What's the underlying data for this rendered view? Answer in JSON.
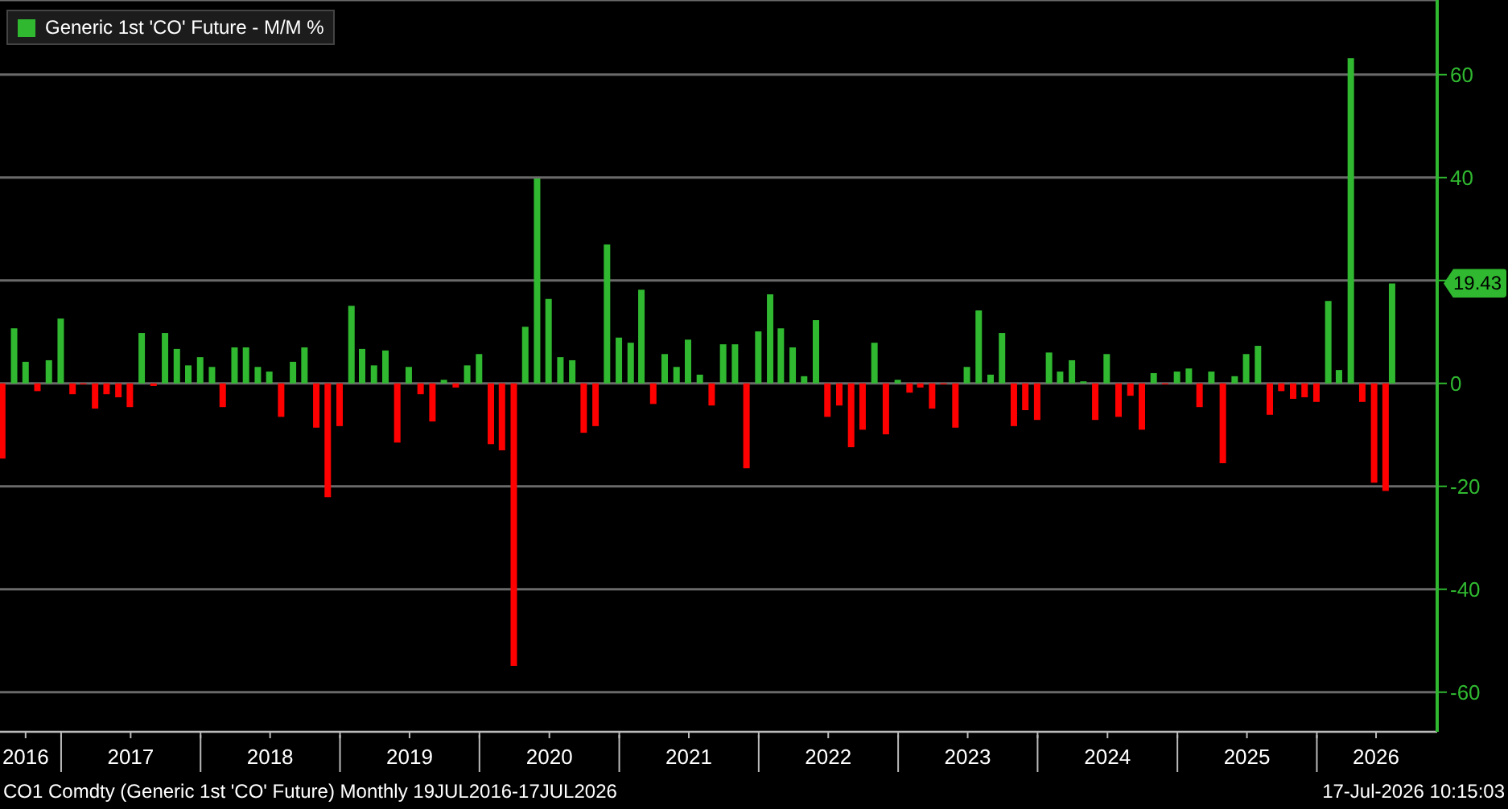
{
  "chart_data": {
    "type": "bar",
    "x": [
      "2016-07-31",
      "2016-08-31",
      "2016-09-30",
      "2016-10-31",
      "2016-11-30",
      "2016-12-31",
      "2017-01-31",
      "2017-02-28",
      "2017-03-31",
      "2017-04-30",
      "2017-05-31",
      "2017-06-30",
      "2017-07-31",
      "2017-08-31",
      "2017-09-30",
      "2017-10-31",
      "2017-11-30",
      "2017-12-31",
      "2018-01-31",
      "2018-02-28",
      "2018-03-31",
      "2018-04-30",
      "2018-05-31",
      "2018-06-30",
      "2018-07-31",
      "2018-08-31",
      "2018-09-30",
      "2018-10-31",
      "2018-11-30",
      "2018-12-31",
      "2019-01-31",
      "2019-02-28",
      "2019-03-31",
      "2019-04-30",
      "2019-05-31",
      "2019-06-30",
      "2019-07-31",
      "2019-08-31",
      "2019-09-30",
      "2019-10-31",
      "2019-11-30",
      "2019-12-31",
      "2020-01-31",
      "2020-02-29",
      "2020-03-31",
      "2020-04-30",
      "2020-05-31",
      "2020-06-30",
      "2020-07-31",
      "2020-08-31",
      "2020-09-30",
      "2020-10-31",
      "2020-11-30",
      "2020-12-31",
      "2021-01-31",
      "2021-02-28",
      "2021-03-31",
      "2021-04-30",
      "2021-05-31",
      "2021-06-30",
      "2021-07-31",
      "2021-08-31",
      "2021-09-30",
      "2021-10-31",
      "2021-11-30",
      "2021-12-31",
      "2022-01-31",
      "2022-02-28",
      "2022-03-31",
      "2022-04-30",
      "2022-05-31",
      "2022-06-30",
      "2022-07-31",
      "2022-08-31",
      "2022-09-30",
      "2022-10-31",
      "2022-11-30",
      "2022-12-31",
      "2023-01-31",
      "2023-02-28",
      "2023-03-31",
      "2023-04-30",
      "2023-05-31",
      "2023-06-30",
      "2023-07-31",
      "2023-08-31",
      "2023-09-30",
      "2023-10-31",
      "2023-11-30",
      "2023-12-31",
      "2024-01-31",
      "2024-02-29",
      "2024-03-31",
      "2024-04-30",
      "2024-05-31",
      "2024-06-30",
      "2024-07-31",
      "2024-08-31",
      "2024-09-30",
      "2024-10-31",
      "2024-11-30",
      "2024-12-31",
      "2025-01-31",
      "2025-02-28",
      "2025-03-31",
      "2025-04-30",
      "2025-05-31",
      "2025-06-30",
      "2025-07-31",
      "2025-08-31",
      "2025-09-30",
      "2025-10-31",
      "2025-11-30",
      "2025-12-31",
      "2026-01-31",
      "2026-02-28",
      "2026-03-31",
      "2026-04-30",
      "2026-05-31",
      "2026-06-30",
      "2026-07-17"
    ],
    "series": [
      {
        "name": "Generic 1st 'CO' Future - M/M %",
        "color": "#30b830",
        "values": [
          -14.6,
          10.7,
          4.2,
          -1.5,
          4.5,
          12.6,
          -2.1,
          -0.2,
          -4.9,
          -2.1,
          -2.7,
          -4.6,
          9.8,
          -0.5,
          9.8,
          6.7,
          3.5,
          5.1,
          3.2,
          -4.6,
          7.0,
          7.0,
          3.2,
          2.3,
          -6.5,
          4.2,
          7.0,
          -8.6,
          -22.1,
          -8.3,
          15.1,
          6.7,
          3.5,
          6.4,
          -11.5,
          3.2,
          -2.1,
          -7.4,
          0.7,
          -0.8,
          3.5,
          5.7,
          -11.8,
          -13.0,
          -54.9,
          11.0,
          39.8,
          16.4,
          5.1,
          4.5,
          -9.6,
          -8.3,
          27.0,
          8.9,
          7.9,
          18.2,
          -4.0,
          5.7,
          3.2,
          8.5,
          1.7,
          -4.3,
          7.6,
          7.6,
          -16.5,
          10.1,
          17.3,
          10.7,
          7.0,
          1.4,
          12.3,
          -6.5,
          -4.3,
          -12.4,
          -9.0,
          7.9,
          -9.9,
          0.7,
          -1.8,
          -0.8,
          -4.9,
          -0.2,
          -8.6,
          3.2,
          14.2,
          1.7,
          9.8,
          -8.3,
          -5.2,
          -7.1,
          6.0,
          2.3,
          4.5,
          0.4,
          -7.1,
          5.7,
          -6.5,
          -2.4,
          -9.0,
          2.0,
          -0.2,
          2.3,
          2.9,
          -4.6,
          2.3,
          -15.5,
          1.4,
          5.7,
          7.3,
          -6.1,
          -1.5,
          -3.0,
          -2.7,
          -3.6,
          16.0,
          2.6,
          63.2,
          -3.6,
          -19.3,
          -20.9,
          19.43
        ],
        "colors": [
          "#ff0000",
          "#30b830",
          "#30b830",
          "#ff0000",
          "#30b830",
          "#30b830",
          "#ff0000",
          "#ff0000",
          "#ff0000",
          "#ff0000",
          "#ff0000",
          "#ff0000",
          "#30b830",
          "#ff0000",
          "#30b830",
          "#30b830",
          "#30b830",
          "#30b830",
          "#30b830",
          "#ff0000",
          "#30b830",
          "#30b830",
          "#30b830",
          "#30b830",
          "#ff0000",
          "#30b830",
          "#30b830",
          "#ff0000",
          "#ff0000",
          "#ff0000",
          "#30b830",
          "#30b830",
          "#30b830",
          "#30b830",
          "#ff0000",
          "#30b830",
          "#ff0000",
          "#ff0000",
          "#30b830",
          "#ff0000",
          "#30b830",
          "#30b830",
          "#ff0000",
          "#ff0000",
          "#ff0000",
          "#30b830",
          "#30b830",
          "#30b830",
          "#30b830",
          "#30b830",
          "#ff0000",
          "#ff0000",
          "#30b830",
          "#30b830",
          "#30b830",
          "#30b830",
          "#ff0000",
          "#30b830",
          "#30b830",
          "#30b830",
          "#30b830",
          "#ff0000",
          "#30b830",
          "#30b830",
          "#ff0000",
          "#30b830",
          "#30b830",
          "#30b830",
          "#30b830",
          "#30b830",
          "#30b830",
          "#ff0000",
          "#ff0000",
          "#ff0000",
          "#ff0000",
          "#30b830",
          "#ff0000",
          "#30b830",
          "#ff0000",
          "#ff0000",
          "#ff0000",
          "#ff0000",
          "#ff0000",
          "#30b830",
          "#30b830",
          "#30b830",
          "#30b830",
          "#ff0000",
          "#ff0000",
          "#ff0000",
          "#30b830",
          "#30b830",
          "#30b830",
          "#30b830",
          "#ff0000",
          "#30b830",
          "#ff0000",
          "#ff0000",
          "#ff0000",
          "#30b830",
          "#ff0000",
          "#30b830",
          "#30b830",
          "#ff0000",
          "#30b830",
          "#ff0000",
          "#30b830",
          "#30b830",
          "#30b830",
          "#ff0000",
          "#ff0000",
          "#ff0000",
          "#ff0000",
          "#ff0000",
          "#30b830",
          "#30b830",
          "#30b830",
          "#ff0000",
          "#ff0000",
          "#ff0000",
          "#30b830"
        ]
      }
    ],
    "xlim": [
      "2016-07-25",
      "2026-11-12"
    ],
    "xticks": [
      {
        "value": "2016-09-30",
        "label": "2016"
      },
      {
        "value": "2017-01-01",
        "label": null
      },
      {
        "value": "2017-07-02",
        "label": "2017"
      },
      {
        "value": "2018-01-01",
        "label": null
      },
      {
        "value": "2018-07-02",
        "label": "2018"
      },
      {
        "value": "2019-01-01",
        "label": null
      },
      {
        "value": "2019-07-02",
        "label": "2019"
      },
      {
        "value": "2020-01-01",
        "label": null
      },
      {
        "value": "2020-07-02",
        "label": "2020"
      },
      {
        "value": "2021-01-01",
        "label": null
      },
      {
        "value": "2021-07-02",
        "label": "2021"
      },
      {
        "value": "2022-01-01",
        "label": null
      },
      {
        "value": "2022-07-02",
        "label": "2022"
      },
      {
        "value": "2023-01-01",
        "label": null
      },
      {
        "value": "2023-07-02",
        "label": "2023"
      },
      {
        "value": "2024-01-01",
        "label": null
      },
      {
        "value": "2024-07-02",
        "label": "2024"
      },
      {
        "value": "2025-01-01",
        "label": null
      },
      {
        "value": "2025-07-02",
        "label": "2025"
      },
      {
        "value": "2026-01-01",
        "label": null
      },
      {
        "value": "2026-06-05",
        "label": "2026"
      }
    ],
    "ylim": [
      -67.7,
      74.5
    ],
    "yticks": [
      -60,
      -40,
      -20,
      0,
      {
        "value": 20,
        "label": null
      },
      40,
      60
    ],
    "grid": "y",
    "legend": "top left",
    "annotations": [
      "19.43",
      "CO1 Comdty (Generic 1st 'CO' Future) Monthly 19JUL2016-17JUL2026",
      "17-Jul-2026 10:15:03"
    ]
  }
}
